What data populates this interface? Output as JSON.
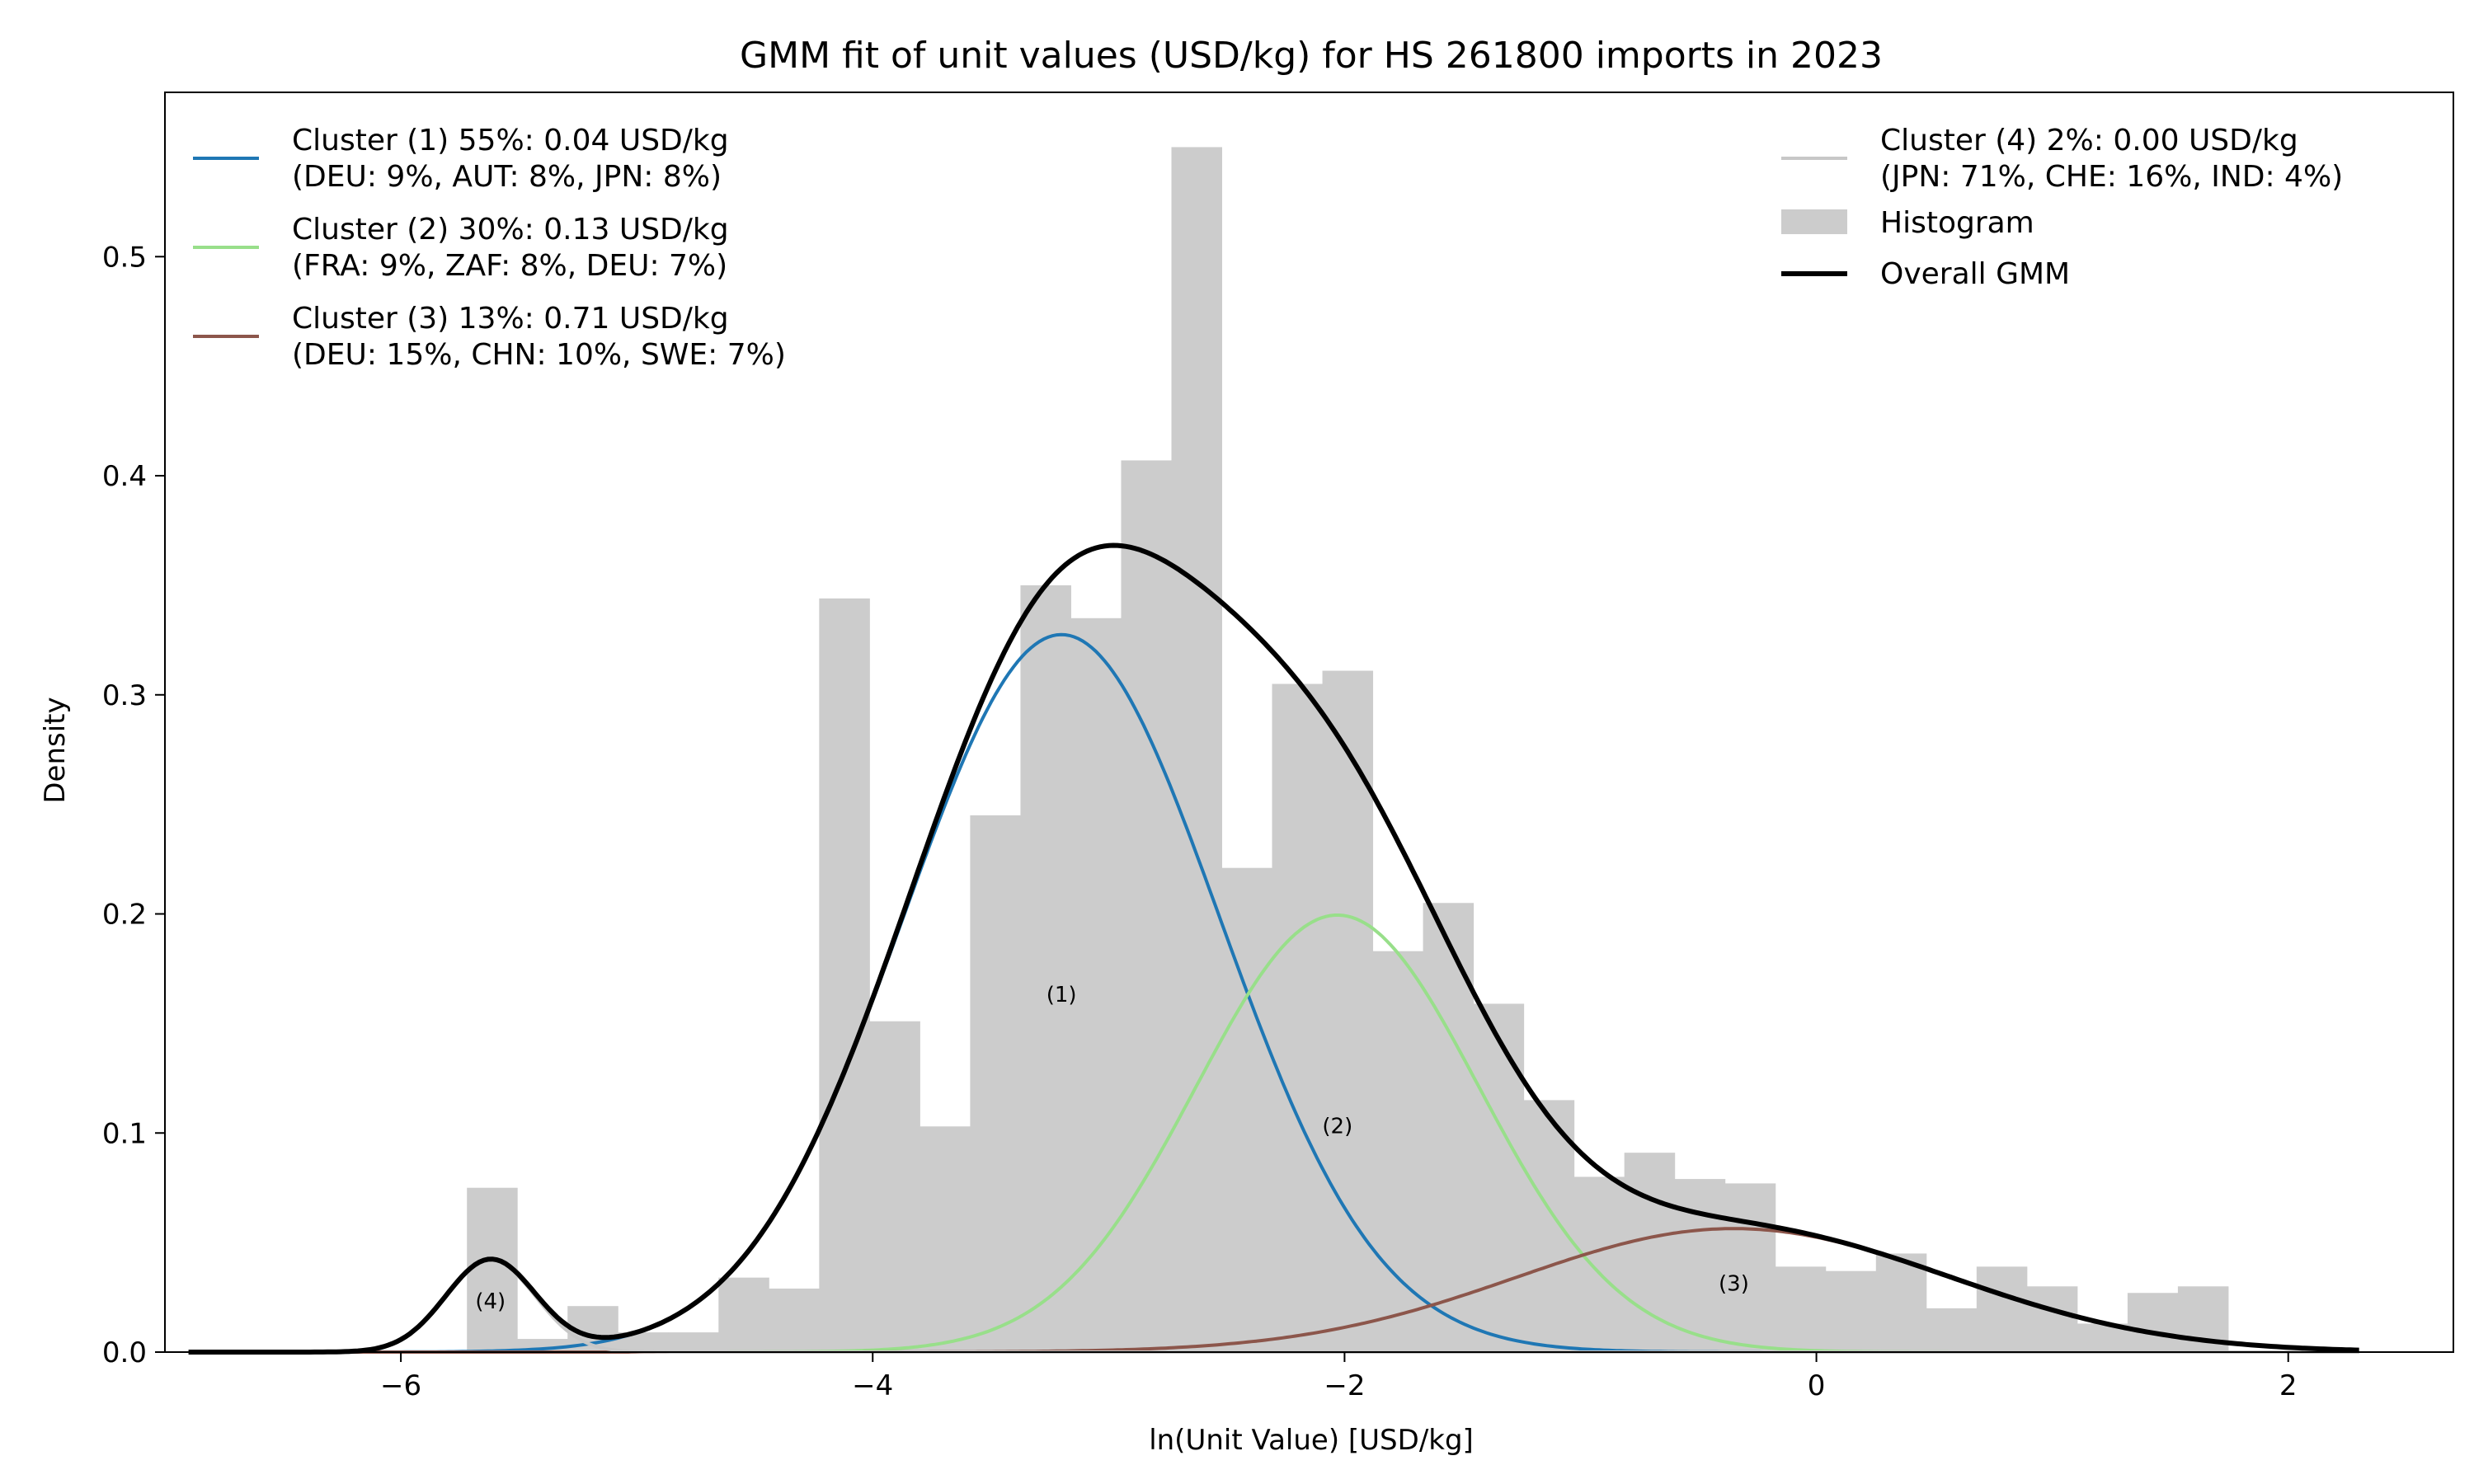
{
  "chart_data": {
    "type": "histogram+line",
    "title": "GMM fit of unit values (USD/kg) for HS 261800 imports in 2023",
    "xlabel": "ln(Unit Value) [USD/kg]",
    "ylabel": "Density",
    "xlim": [
      -7.0,
      2.7
    ],
    "ylim": [
      0.0,
      0.575
    ],
    "xticks": [
      -6,
      -4,
      -2,
      0,
      2
    ],
    "xtick_labels": [
      "−6",
      "−4",
      "−2",
      "0",
      "2"
    ],
    "yticks": [
      0.0,
      0.1,
      0.2,
      0.3,
      0.4,
      0.5
    ],
    "ytick_labels": [
      "0.0",
      "0.1",
      "0.2",
      "0.3",
      "0.4",
      "0.5"
    ],
    "grid": false,
    "histogram": {
      "name": "Histogram",
      "color": "#cccccc",
      "bin_start": -5.72,
      "bin_width": 0.2133,
      "densities": [
        0.075,
        0.006,
        0.021,
        0.009,
        0.009,
        0.034,
        0.029,
        0.344,
        0.151,
        0.103,
        0.245,
        0.35,
        0.335,
        0.407,
        0.55,
        0.221,
        0.305,
        0.311,
        0.183,
        0.205,
        0.159,
        0.115,
        0.08,
        0.091,
        0.079,
        0.077,
        0.039,
        0.037,
        0.045,
        0.02,
        0.039,
        0.03,
        0.013,
        0.027,
        0.03
      ]
    },
    "components": [
      {
        "label": "(1)",
        "weight": 0.55,
        "mean": -3.2,
        "sd": 0.67,
        "color": "#1f77b4",
        "ann_x": -3.2,
        "ann_y": 0.16
      },
      {
        "label": "(2)",
        "weight": 0.3,
        "mean": -2.03,
        "sd": 0.6,
        "color": "#98df8a",
        "ann_x": -2.03,
        "ann_y": 0.1
      },
      {
        "label": "(3)",
        "weight": 0.13,
        "mean": -0.35,
        "sd": 0.92,
        "color": "#8c564b",
        "ann_x": -0.35,
        "ann_y": 0.028
      },
      {
        "label": "(4)",
        "weight": 0.02,
        "mean": -5.62,
        "sd": 0.19,
        "color": "#c7c7c7",
        "ann_x": -5.62,
        "ann_y": 0.02
      }
    ],
    "overall": {
      "name": "Overall GMM",
      "color": "#000000",
      "x_range": [
        -6.9,
        2.3
      ]
    },
    "legend_left": [
      {
        "line1": "Cluster (1) 55%: 0.04 USD/kg",
        "line2": "(DEU: 9%, AUT: 8%, JPN: 8%)",
        "color": "#1f77b4"
      },
      {
        "line1": "Cluster (2) 30%: 0.13 USD/kg",
        "line2": "(FRA: 9%, ZAF: 8%, DEU: 7%)",
        "color": "#98df8a"
      },
      {
        "line1": "Cluster (3) 13%: 0.71 USD/kg",
        "line2": "(DEU: 15%, CHN: 10%, SWE: 7%)",
        "color": "#8c564b"
      }
    ],
    "legend_right": [
      {
        "line1": "Cluster (4) 2%: 0.00 USD/kg",
        "line2": "(JPN: 71%, CHE: 16%, IND: 4%)",
        "color": "#c7c7c7"
      },
      {
        "label": "Histogram",
        "color": "#cccccc"
      },
      {
        "label": "Overall GMM",
        "color": "#000000"
      }
    ]
  }
}
